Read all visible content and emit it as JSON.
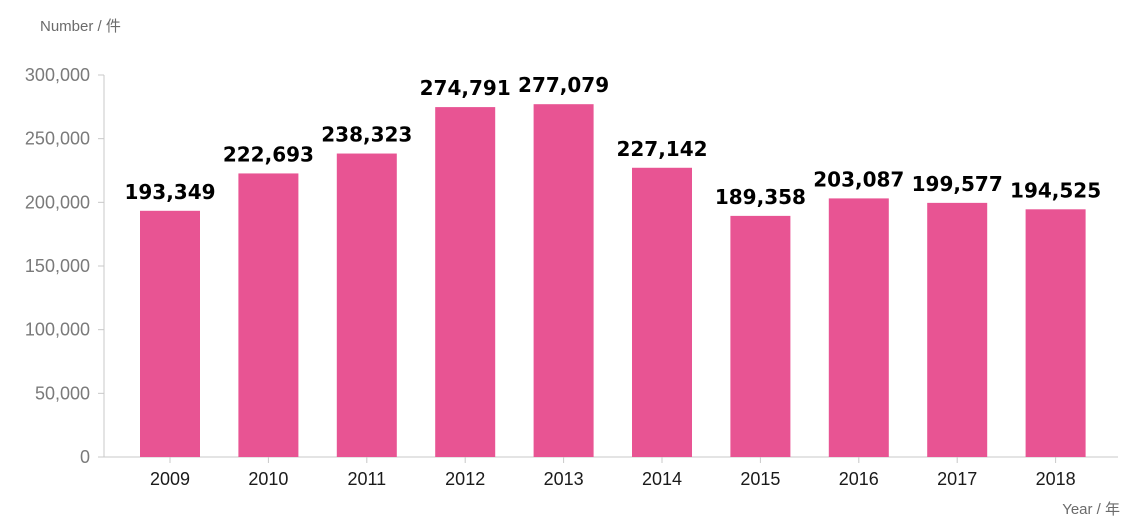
{
  "chart_data": {
    "type": "bar",
    "categories": [
      "2009",
      "2010",
      "2011",
      "2012",
      "2013",
      "2014",
      "2015",
      "2016",
      "2017",
      "2018"
    ],
    "values": [
      193349,
      222693,
      238323,
      274791,
      277079,
      227142,
      189358,
      203087,
      199577,
      194525
    ],
    "data_labels": [
      "193,349",
      "222,693",
      "238,323",
      "274,791",
      "277,079",
      "227,142",
      "189,358",
      "203,087",
      "199,577",
      "194,525"
    ],
    "title": "",
    "xlabel": "Year / 年",
    "ylabel": "Number / 件",
    "ylim": [
      0,
      300000
    ],
    "yticks": [
      0,
      50000,
      100000,
      150000,
      200000,
      250000,
      300000
    ],
    "ytick_labels": [
      "0",
      "50,000",
      "100,000",
      "150,000",
      "200,000",
      "250,000",
      "300,000"
    ],
    "grid": false,
    "legend": "none",
    "colors": {
      "bar": "#e85493",
      "axis": "#c8c8c8"
    }
  }
}
